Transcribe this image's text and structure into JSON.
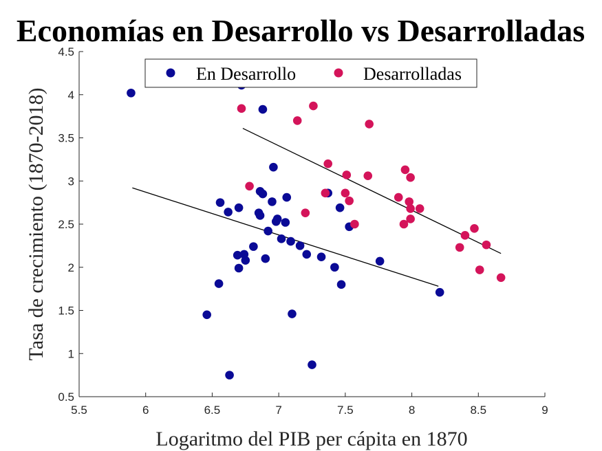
{
  "chart_data": {
    "type": "scatter",
    "title": "Economías en Desarrollo vs Desarrolladas",
    "xlabel": "Logaritmo del PIB per cápita en 1870",
    "ylabel": "Tasa de crecimiento (1870-2018)",
    "xlim": [
      5.5,
      9
    ],
    "ylim": [
      0.5,
      4.5
    ],
    "xticks": [
      "5.5",
      "6",
      "6.5",
      "7",
      "7.5",
      "8",
      "8.5",
      "9"
    ],
    "yticks": [
      "0.5",
      "1",
      "1.5",
      "2",
      "2.5",
      "3",
      "3.5",
      "4",
      "4.5"
    ],
    "grid": false,
    "legend_position": "top",
    "series": [
      {
        "name": "En Desarrollo",
        "color": "#0a0a96",
        "points": [
          [
            5.89,
            4.02
          ],
          [
            6.72,
            4.11
          ],
          [
            6.88,
            3.83
          ],
          [
            6.96,
            3.16
          ],
          [
            6.56,
            2.75
          ],
          [
            6.62,
            2.64
          ],
          [
            6.7,
            2.69
          ],
          [
            6.86,
            2.88
          ],
          [
            6.88,
            2.85
          ],
          [
            6.95,
            2.76
          ],
          [
            7.06,
            2.81
          ],
          [
            6.85,
            2.63
          ],
          [
            6.86,
            2.6
          ],
          [
            6.98,
            2.53
          ],
          [
            6.99,
            2.56
          ],
          [
            7.05,
            2.52
          ],
          [
            6.92,
            2.42
          ],
          [
            7.02,
            2.33
          ],
          [
            7.09,
            2.3
          ],
          [
            7.16,
            2.25
          ],
          [
            6.81,
            2.24
          ],
          [
            6.74,
            2.15
          ],
          [
            6.69,
            2.14
          ],
          [
            6.75,
            2.08
          ],
          [
            6.9,
            2.1
          ],
          [
            6.7,
            1.99
          ],
          [
            7.21,
            2.15
          ],
          [
            7.32,
            2.12
          ],
          [
            7.42,
            2.0
          ],
          [
            7.37,
            2.86
          ],
          [
            7.46,
            2.69
          ],
          [
            7.53,
            2.47
          ],
          [
            7.47,
            1.8
          ],
          [
            7.76,
            2.07
          ],
          [
            8.21,
            1.71
          ],
          [
            6.55,
            1.81
          ],
          [
            6.46,
            1.45
          ],
          [
            7.1,
            1.46
          ],
          [
            7.25,
            0.87
          ],
          [
            6.63,
            0.75
          ]
        ],
        "trend": [
          [
            5.9,
            2.92
          ],
          [
            8.2,
            1.78
          ]
        ]
      },
      {
        "name": "Desarrolladas",
        "color": "#d4145a",
        "points": [
          [
            6.72,
            3.84
          ],
          [
            7.26,
            3.87
          ],
          [
            7.14,
            3.7
          ],
          [
            7.68,
            3.66
          ],
          [
            7.37,
            3.2
          ],
          [
            7.51,
            3.07
          ],
          [
            7.67,
            3.06
          ],
          [
            7.95,
            3.13
          ],
          [
            7.99,
            3.04
          ],
          [
            6.78,
            2.94
          ],
          [
            7.35,
            2.86
          ],
          [
            7.5,
            2.86
          ],
          [
            7.53,
            2.77
          ],
          [
            7.9,
            2.81
          ],
          [
            7.98,
            2.76
          ],
          [
            8.06,
            2.68
          ],
          [
            7.99,
            2.68
          ],
          [
            7.2,
            2.63
          ],
          [
            7.57,
            2.5
          ],
          [
            7.94,
            2.5
          ],
          [
            7.99,
            2.56
          ],
          [
            8.4,
            2.37
          ],
          [
            8.47,
            2.45
          ],
          [
            8.36,
            2.23
          ],
          [
            8.56,
            2.26
          ],
          [
            8.51,
            1.97
          ],
          [
            8.67,
            1.88
          ]
        ],
        "trend": [
          [
            6.73,
            3.61
          ],
          [
            8.67,
            2.16
          ]
        ]
      }
    ]
  }
}
